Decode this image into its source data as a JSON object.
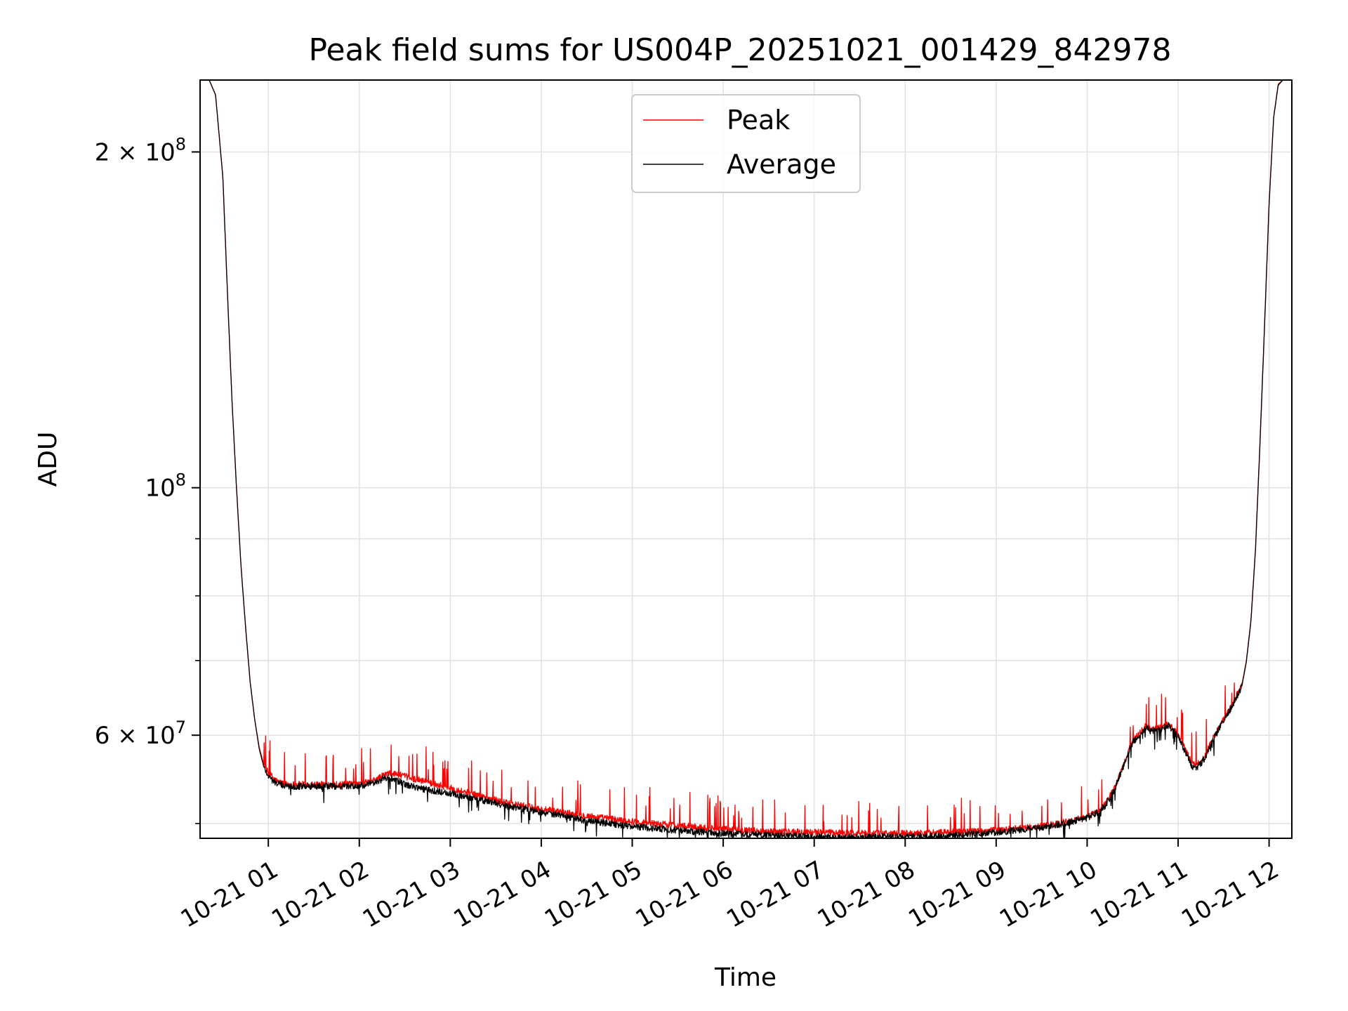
{
  "chart_data": {
    "type": "line",
    "title": "Peak field sums for US004P_20251021_001429_842978",
    "xlabel": "Time",
    "ylabel": "ADU",
    "yscale": "log",
    "grid": true,
    "legend_position": "top-center",
    "xlim_hours": [
      0.25,
      12.25
    ],
    "ylim": [
      48500000,
      232000000
    ],
    "x_ticks": [
      {
        "hour": 1,
        "label": "10-21 01"
      },
      {
        "hour": 2,
        "label": "10-21 02"
      },
      {
        "hour": 3,
        "label": "10-21 03"
      },
      {
        "hour": 4,
        "label": "10-21 04"
      },
      {
        "hour": 5,
        "label": "10-21 05"
      },
      {
        "hour": 6,
        "label": "10-21 06"
      },
      {
        "hour": 7,
        "label": "10-21 07"
      },
      {
        "hour": 8,
        "label": "10-21 08"
      },
      {
        "hour": 9,
        "label": "10-21 09"
      },
      {
        "hour": 10,
        "label": "10-21 10"
      },
      {
        "hour": 11,
        "label": "10-21 11"
      },
      {
        "hour": 12,
        "label": "10-21 12"
      }
    ],
    "y_major_ticks": [
      {
        "value": 200000000,
        "mantissa": "2",
        "exponent": "8"
      },
      {
        "value": 100000000,
        "mantissa": "",
        "exponent": "8"
      },
      {
        "value": 60000000,
        "mantissa": "6",
        "exponent": "7"
      }
    ],
    "y_minor_ticks": [
      50000000,
      70000000,
      80000000,
      90000000
    ],
    "series": [
      {
        "name": "Peak",
        "color": "#ff0000",
        "x_hours": [
          0.25,
          0.35,
          0.42,
          0.5,
          0.55,
          0.6,
          0.65,
          0.7,
          0.75,
          0.8,
          0.85,
          0.9,
          0.95,
          1.0,
          1.05,
          1.1,
          1.2,
          1.4,
          1.6,
          1.8,
          2.0,
          2.15,
          2.3,
          2.4,
          2.5,
          2.7,
          3.0,
          3.3,
          3.6,
          4.0,
          4.5,
          5.0,
          5.5,
          6.0,
          6.5,
          7.0,
          7.5,
          8.0,
          8.5,
          9.0,
          9.5,
          9.8,
          10.0,
          10.1,
          10.2,
          10.3,
          10.4,
          10.5,
          10.6,
          10.65,
          10.7,
          10.8,
          10.9,
          11.0,
          11.1,
          11.15,
          11.2,
          11.3,
          11.4,
          11.5,
          11.6,
          11.7,
          11.75,
          11.8,
          11.85,
          11.9,
          11.95,
          12.0,
          12.05,
          12.1,
          12.15,
          12.25
        ],
        "values": [
          232000000,
          232000000,
          225000000,
          190000000,
          150000000,
          120000000,
          100000000,
          85000000,
          75000000,
          67000000,
          62000000,
          58500000,
          56500000,
          55500000,
          55000000,
          54500000,
          54200000,
          54200000,
          54200000,
          54200000,
          54200000,
          54600000,
          55400000,
          55400000,
          55100000,
          54600000,
          53800000,
          53000000,
          52200000,
          51500000,
          50800000,
          50200000,
          49800000,
          49400000,
          49200000,
          49100000,
          49000000,
          49000000,
          49100000,
          49300000,
          49700000,
          50200000,
          50700000,
          51200000,
          52000000,
          53800000,
          56500000,
          59300000,
          60500000,
          61200000,
          60700000,
          60900000,
          61400000,
          60000000,
          57800000,
          56700000,
          56300000,
          57600000,
          60000000,
          62000000,
          64000000,
          66500000,
          70000000,
          76000000,
          88000000,
          110000000,
          140000000,
          180000000,
          215000000,
          230000000,
          232000000,
          232000000
        ]
      },
      {
        "name": "Average",
        "color": "#000000",
        "x_hours": [
          0.25,
          0.35,
          0.42,
          0.5,
          0.55,
          0.6,
          0.65,
          0.7,
          0.75,
          0.8,
          0.85,
          0.9,
          0.95,
          1.0,
          1.05,
          1.1,
          1.2,
          1.4,
          1.6,
          1.8,
          2.0,
          2.15,
          2.3,
          2.4,
          2.5,
          2.7,
          3.0,
          3.3,
          3.6,
          4.0,
          4.5,
          5.0,
          5.5,
          6.0,
          6.5,
          7.0,
          7.5,
          8.0,
          8.5,
          9.0,
          9.5,
          9.8,
          10.0,
          10.1,
          10.2,
          10.3,
          10.4,
          10.5,
          10.6,
          10.65,
          10.7,
          10.8,
          10.9,
          11.0,
          11.1,
          11.15,
          11.2,
          11.3,
          11.4,
          11.5,
          11.6,
          11.7,
          11.75,
          11.8,
          11.85,
          11.9,
          11.95,
          12.0,
          12.05,
          12.1,
          12.15,
          12.25
        ],
        "values": [
          232000000,
          232000000,
          225000000,
          190000000,
          150000000,
          120000000,
          100000000,
          85000000,
          75000000,
          67000000,
          62000000,
          58300000,
          56200000,
          55200000,
          54600000,
          54300000,
          54000000,
          54000000,
          54000000,
          54000000,
          54000000,
          54300000,
          55000000,
          54700000,
          54200000,
          53700000,
          53200000,
          52600000,
          51900000,
          51200000,
          50300000,
          49700000,
          49300000,
          49000000,
          48800000,
          48650000,
          48600000,
          48650000,
          48800000,
          49100000,
          49600000,
          50100000,
          50600000,
          51100000,
          51900000,
          53600000,
          56300000,
          59100000,
          60300000,
          61000000,
          60500000,
          60700000,
          61200000,
          59800000,
          57500000,
          56300000,
          55900000,
          57300000,
          59800000,
          61800000,
          63800000,
          66300000,
          69800000,
          75800000,
          87800000,
          109500000,
          139500000,
          179500000,
          214500000,
          229500000,
          232000000,
          232000000
        ]
      }
    ]
  }
}
